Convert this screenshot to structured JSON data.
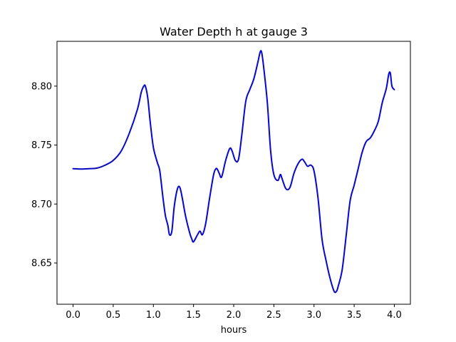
{
  "chart_data": {
    "type": "line",
    "title": "Water Depth h at gauge 3",
    "xlabel": "hours",
    "ylabel": "",
    "xlim": [
      -0.2,
      4.2
    ],
    "ylim": [
      8.615,
      8.838
    ],
    "xticks": [
      0.0,
      0.5,
      1.0,
      1.5,
      2.0,
      2.5,
      3.0,
      3.5,
      4.0
    ],
    "xtick_labels": [
      "0.0",
      "0.5",
      "1.0",
      "1.5",
      "2.0",
      "2.5",
      "3.0",
      "3.5",
      "4.0"
    ],
    "yticks": [
      8.65,
      8.7,
      8.75,
      8.8
    ],
    "ytick_labels": [
      "8.65",
      "8.70",
      "8.75",
      "8.80"
    ],
    "grid": false,
    "series": [
      {
        "color": "#0000ff",
        "x": [
          0.0,
          0.1,
          0.2,
          0.3,
          0.4,
          0.5,
          0.6,
          0.7,
          0.8,
          0.85,
          0.88,
          0.9,
          0.93,
          0.96,
          1.0,
          1.05,
          1.08,
          1.12,
          1.15,
          1.18,
          1.2,
          1.23,
          1.26,
          1.3,
          1.33,
          1.36,
          1.4,
          1.45,
          1.48,
          1.5,
          1.55,
          1.58,
          1.61,
          1.65,
          1.7,
          1.75,
          1.78,
          1.8,
          1.82,
          1.85,
          1.9,
          1.95,
          1.98,
          2.02,
          2.06,
          2.1,
          2.15,
          2.2,
          2.25,
          2.3,
          2.33,
          2.35,
          2.38,
          2.42,
          2.46,
          2.5,
          2.55,
          2.58,
          2.6,
          2.65,
          2.7,
          2.75,
          2.8,
          2.85,
          2.88,
          2.92,
          2.96,
          3.0,
          3.05,
          3.1,
          3.15,
          3.2,
          3.25,
          3.28,
          3.3,
          3.35,
          3.4,
          3.45,
          3.5,
          3.55,
          3.6,
          3.65,
          3.7,
          3.75,
          3.8,
          3.85,
          3.9,
          3.93,
          3.95,
          3.97,
          4.0
        ],
        "y": [
          8.73,
          8.7297,
          8.73,
          8.7305,
          8.733,
          8.737,
          8.745,
          8.76,
          8.78,
          8.795,
          8.8,
          8.8,
          8.79,
          8.77,
          8.748,
          8.735,
          8.728,
          8.705,
          8.69,
          8.682,
          8.674,
          8.677,
          8.698,
          8.713,
          8.714,
          8.705,
          8.69,
          8.676,
          8.67,
          8.668,
          8.674,
          8.677,
          8.674,
          8.683,
          8.705,
          8.725,
          8.73,
          8.729,
          8.726,
          8.723,
          8.737,
          8.747,
          8.745,
          8.737,
          8.738,
          8.758,
          8.787,
          8.797,
          8.806,
          8.82,
          8.829,
          8.828,
          8.812,
          8.785,
          8.745,
          8.725,
          8.72,
          8.725,
          8.722,
          8.713,
          8.714,
          8.726,
          8.734,
          8.738,
          8.736,
          8.732,
          8.733,
          8.728,
          8.705,
          8.67,
          8.652,
          8.637,
          8.626,
          8.626,
          8.63,
          8.644,
          8.673,
          8.703,
          8.716,
          8.73,
          8.744,
          8.753,
          8.756,
          8.762,
          8.77,
          8.786,
          8.798,
          8.81,
          8.811,
          8.8,
          8.797
        ]
      }
    ]
  }
}
